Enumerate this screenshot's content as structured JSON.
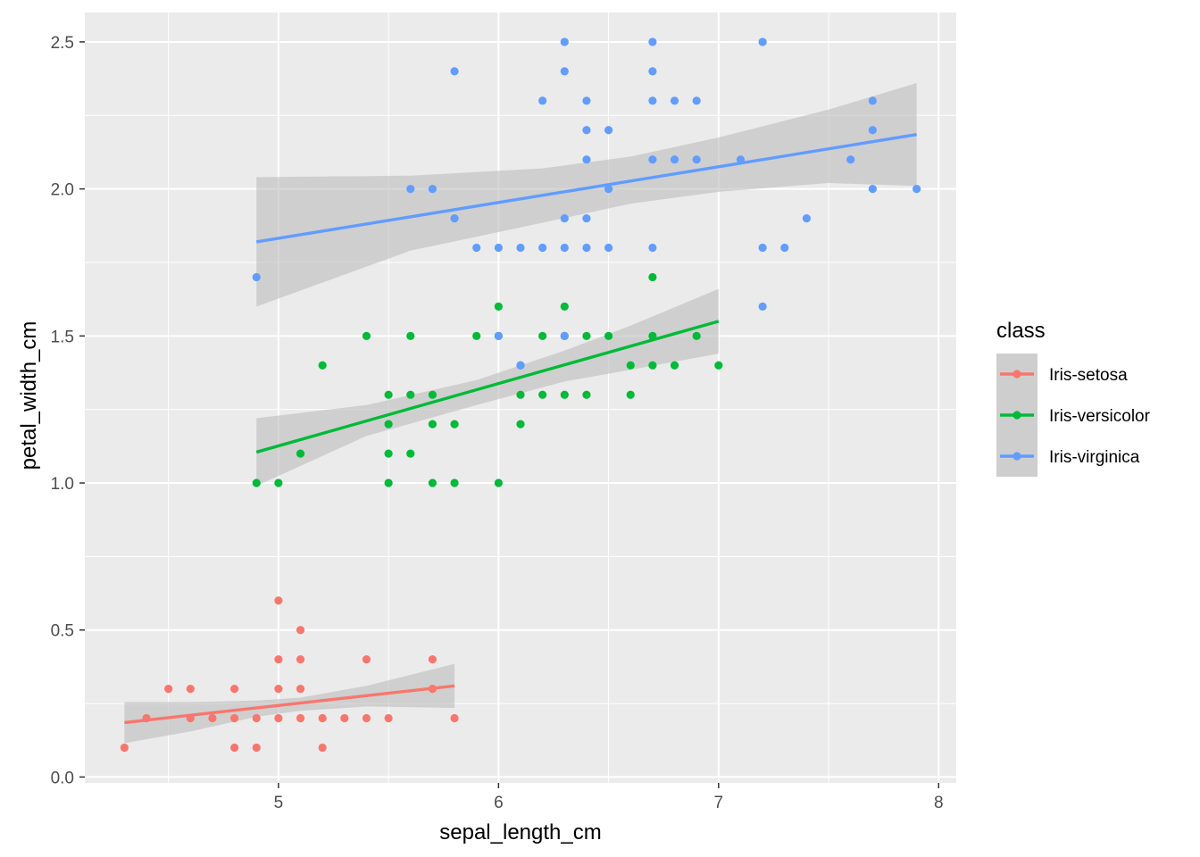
{
  "chart_data": {
    "type": "scatter",
    "title": "",
    "xlabel": "sepal_length_cm",
    "ylabel": "petal_width_cm",
    "xlim": [
      4.12,
      8.08
    ],
    "ylim": [
      -0.02,
      2.6
    ],
    "x_ticks": [
      5,
      6,
      7,
      8
    ],
    "y_ticks": [
      0.0,
      0.5,
      1.0,
      1.5,
      2.0,
      2.5
    ],
    "x_tick_labels": [
      "5",
      "6",
      "7",
      "8"
    ],
    "y_tick_labels": [
      "0.0",
      "0.5",
      "1.0",
      "1.5",
      "2.0",
      "2.5"
    ],
    "grid": true,
    "legend": {
      "title": "class",
      "position": "right"
    },
    "panel_color": "#ebebeb",
    "ribbon_color": "#bdbdbd",
    "series": [
      {
        "name": "Iris-setosa",
        "color": "#F8766D",
        "points": [
          [
            4.3,
            0.1
          ],
          [
            4.4,
            0.2
          ],
          [
            4.5,
            0.3
          ],
          [
            4.6,
            0.3
          ],
          [
            4.6,
            0.2
          ],
          [
            4.7,
            0.2
          ],
          [
            4.8,
            0.3
          ],
          [
            4.8,
            0.2
          ],
          [
            4.8,
            0.1
          ],
          [
            4.9,
            0.2
          ],
          [
            4.9,
            0.1
          ],
          [
            5.0,
            0.6
          ],
          [
            5.0,
            0.4
          ],
          [
            5.0,
            0.3
          ],
          [
            5.0,
            0.2
          ],
          [
            5.1,
            0.5
          ],
          [
            5.1,
            0.4
          ],
          [
            5.1,
            0.3
          ],
          [
            5.1,
            0.2
          ],
          [
            5.2,
            0.2
          ],
          [
            5.2,
            0.1
          ],
          [
            5.3,
            0.2
          ],
          [
            5.4,
            0.4
          ],
          [
            5.4,
            0.2
          ],
          [
            5.5,
            0.2
          ],
          [
            5.7,
            0.4
          ],
          [
            5.7,
            0.3
          ],
          [
            5.8,
            0.2
          ]
        ],
        "fit": {
          "x": [
            4.3,
            5.8
          ],
          "y": [
            0.185,
            0.31
          ]
        },
        "ribbon": {
          "x": [
            4.3,
            4.6,
            4.9,
            5.1,
            5.4,
            5.8
          ],
          "upper": [
            0.255,
            0.255,
            0.26,
            0.27,
            0.31,
            0.385
          ],
          "lower": [
            0.115,
            0.155,
            0.205,
            0.225,
            0.24,
            0.235
          ]
        }
      },
      {
        "name": "Iris-versicolor",
        "color": "#00BA38",
        "points": [
          [
            4.9,
            1.0
          ],
          [
            5.0,
            1.0
          ],
          [
            5.1,
            1.1
          ],
          [
            5.2,
            1.4
          ],
          [
            5.4,
            1.5
          ],
          [
            5.5,
            1.3
          ],
          [
            5.5,
            1.2
          ],
          [
            5.5,
            1.1
          ],
          [
            5.5,
            1.0
          ],
          [
            5.6,
            1.5
          ],
          [
            5.6,
            1.3
          ],
          [
            5.6,
            1.1
          ],
          [
            5.7,
            1.3
          ],
          [
            5.7,
            1.2
          ],
          [
            5.7,
            1.0
          ],
          [
            5.8,
            1.2
          ],
          [
            5.8,
            1.0
          ],
          [
            5.9,
            1.5
          ],
          [
            6.0,
            1.6
          ],
          [
            6.0,
            1.5
          ],
          [
            6.0,
            1.0
          ],
          [
            6.1,
            1.4
          ],
          [
            6.1,
            1.3
          ],
          [
            6.1,
            1.2
          ],
          [
            6.2,
            1.5
          ],
          [
            6.2,
            1.3
          ],
          [
            6.3,
            1.6
          ],
          [
            6.3,
            1.5
          ],
          [
            6.3,
            1.3
          ],
          [
            6.4,
            1.5
          ],
          [
            6.4,
            1.3
          ],
          [
            6.5,
            1.5
          ],
          [
            6.6,
            1.4
          ],
          [
            6.6,
            1.3
          ],
          [
            6.7,
            1.7
          ],
          [
            6.7,
            1.5
          ],
          [
            6.7,
            1.4
          ],
          [
            6.8,
            1.4
          ],
          [
            6.9,
            1.5
          ],
          [
            7.0,
            1.4
          ]
        ],
        "fit": {
          "x": [
            4.9,
            7.0
          ],
          "y": [
            1.105,
            1.55
          ]
        },
        "ribbon": {
          "x": [
            4.9,
            5.4,
            5.9,
            6.3,
            6.6,
            7.0
          ],
          "upper": [
            1.22,
            1.265,
            1.35,
            1.45,
            1.535,
            1.66
          ],
          "lower": [
            0.99,
            1.16,
            1.265,
            1.345,
            1.385,
            1.44
          ]
        }
      },
      {
        "name": "Iris-virginica",
        "color": "#619CFF",
        "points": [
          [
            4.9,
            1.7
          ],
          [
            5.6,
            2.0
          ],
          [
            5.7,
            2.0
          ],
          [
            5.8,
            2.4
          ],
          [
            5.8,
            1.9
          ],
          [
            5.9,
            1.8
          ],
          [
            6.0,
            1.8
          ],
          [
            6.0,
            1.5
          ],
          [
            6.1,
            1.8
          ],
          [
            6.1,
            1.4
          ],
          [
            6.2,
            2.3
          ],
          [
            6.2,
            1.8
          ],
          [
            6.3,
            2.5
          ],
          [
            6.3,
            2.4
          ],
          [
            6.3,
            1.9
          ],
          [
            6.3,
            1.8
          ],
          [
            6.3,
            1.5
          ],
          [
            6.4,
            2.3
          ],
          [
            6.4,
            2.2
          ],
          [
            6.4,
            2.1
          ],
          [
            6.4,
            1.9
          ],
          [
            6.4,
            1.8
          ],
          [
            6.5,
            2.2
          ],
          [
            6.5,
            2.0
          ],
          [
            6.5,
            1.8
          ],
          [
            6.7,
            2.5
          ],
          [
            6.7,
            2.4
          ],
          [
            6.7,
            2.3
          ],
          [
            6.7,
            2.1
          ],
          [
            6.7,
            1.8
          ],
          [
            6.8,
            2.3
          ],
          [
            6.8,
            2.1
          ],
          [
            6.9,
            2.3
          ],
          [
            6.9,
            2.1
          ],
          [
            7.1,
            2.1
          ],
          [
            7.2,
            2.5
          ],
          [
            7.2,
            1.8
          ],
          [
            7.2,
            1.6
          ],
          [
            7.3,
            1.8
          ],
          [
            7.4,
            1.9
          ],
          [
            7.6,
            2.1
          ],
          [
            7.7,
            2.3
          ],
          [
            7.7,
            2.2
          ],
          [
            7.7,
            2.0
          ],
          [
            7.9,
            2.0
          ]
        ],
        "fit": {
          "x": [
            4.9,
            7.9
          ],
          "y": [
            1.82,
            2.185
          ]
        },
        "ribbon": {
          "x": [
            4.9,
            5.6,
            6.2,
            6.6,
            7.0,
            7.5,
            7.9
          ],
          "upper": [
            2.04,
            2.045,
            2.07,
            2.11,
            2.175,
            2.27,
            2.36
          ],
          "lower": [
            1.6,
            1.79,
            1.885,
            1.95,
            1.99,
            2.02,
            2.01
          ]
        }
      }
    ]
  }
}
